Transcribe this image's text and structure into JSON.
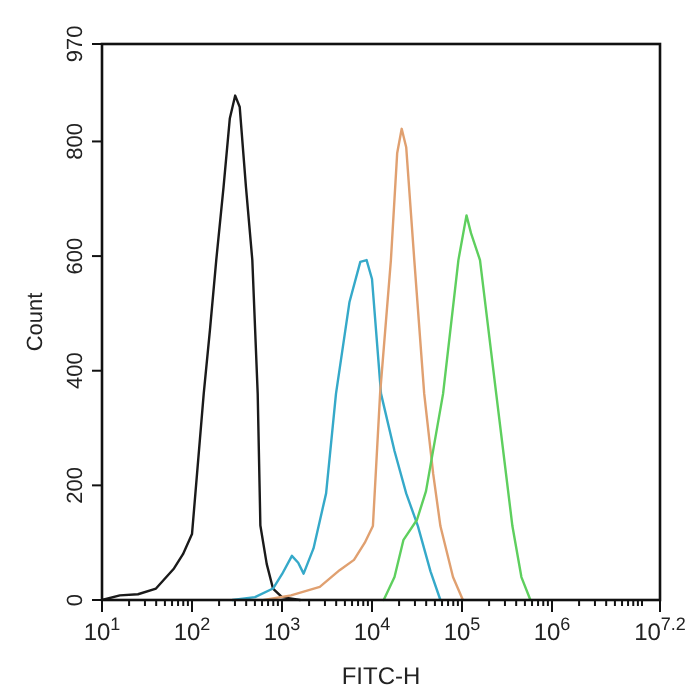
{
  "chart_data": {
    "type": "line",
    "xlabel": "FITC-H",
    "ylabel": "Count",
    "log": "x",
    "grid": false,
    "marker": "none",
    "line_style": "solid",
    "xlim": [
      10,
      15848932
    ],
    "ylim": [
      0,
      970
    ],
    "xticks": [
      {
        "value": 10,
        "label": "10$^{1}$"
      },
      {
        "value": 20,
        "label": null
      },
      {
        "value": 30,
        "label": null
      },
      {
        "value": 40,
        "label": null
      },
      {
        "value": 50,
        "label": null
      },
      {
        "value": 60,
        "label": null
      },
      {
        "value": 70,
        "label": null
      },
      {
        "value": 80,
        "label": null
      },
      {
        "value": 90,
        "label": null
      },
      {
        "value": 100,
        "label": "10$^{2}$"
      },
      {
        "value": 200,
        "label": null
      },
      {
        "value": 300,
        "label": null
      },
      {
        "value": 400,
        "label": null
      },
      {
        "value": 500,
        "label": null
      },
      {
        "value": 600,
        "label": null
      },
      {
        "value": 700,
        "label": null
      },
      {
        "value": 800,
        "label": null
      },
      {
        "value": 900,
        "label": null
      },
      {
        "value": 1000,
        "label": "10$^{3}$"
      },
      {
        "value": 2000,
        "label": null
      },
      {
        "value": 3000,
        "label": null
      },
      {
        "value": 4000,
        "label": null
      },
      {
        "value": 5000,
        "label": null
      },
      {
        "value": 6000,
        "label": null
      },
      {
        "value": 7000,
        "label": null
      },
      {
        "value": 8000,
        "label": null
      },
      {
        "value": 9000,
        "label": null
      },
      {
        "value": 10000,
        "label": "10$^{4}$"
      },
      {
        "value": 20000,
        "label": null
      },
      {
        "value": 30000,
        "label": null
      },
      {
        "value": 40000,
        "label": null
      },
      {
        "value": 50000,
        "label": null
      },
      {
        "value": 60000,
        "label": null
      },
      {
        "value": 70000,
        "label": null
      },
      {
        "value": 80000,
        "label": null
      },
      {
        "value": 90000,
        "label": null
      },
      {
        "value": 100000,
        "label": "10$^{5}$"
      },
      {
        "value": 200000,
        "label": null
      },
      {
        "value": 300000,
        "label": null
      },
      {
        "value": 400000,
        "label": null
      },
      {
        "value": 500000,
        "label": null
      },
      {
        "value": 600000,
        "label": null
      },
      {
        "value": 700000,
        "label": null
      },
      {
        "value": 800000,
        "label": null
      },
      {
        "value": 900000,
        "label": null
      },
      {
        "value": 1000000,
        "label": "10$^{6}$"
      },
      {
        "value": 2000000,
        "label": null
      },
      {
        "value": 3000000,
        "label": null
      },
      {
        "value": 4000000,
        "label": null
      },
      {
        "value": 5000000,
        "label": null
      },
      {
        "value": 6000000,
        "label": null
      },
      {
        "value": 7000000,
        "label": null
      },
      {
        "value": 8000000,
        "label": null
      },
      {
        "value": 9000000,
        "label": null
      },
      {
        "value": 10000000,
        "label": null
      },
      {
        "value": 15848932,
        "label": "10$^{7.2}$"
      }
    ],
    "yticks": [
      0,
      200,
      400,
      600,
      800,
      970
    ],
    "series": [
      {
        "color": "#1a1a1a",
        "x": [
          10,
          15.8,
          25.1,
          39.8,
          63.1,
          79.4,
          100,
          135,
          158,
          186,
          224,
          263,
          302,
          339,
          398,
          468,
          537,
          575,
          676,
          794,
          1000,
          1585
        ],
        "values": [
          0,
          8,
          10,
          20,
          55,
          80,
          115,
          360,
          470,
          593,
          720,
          840,
          880,
          860,
          720,
          593,
          360,
          130,
          63,
          20,
          5,
          0
        ]
      },
      {
        "color": "#35a9c9",
        "x": [
          282,
          501,
          794,
          1000,
          1288,
          1514,
          1738,
          2239,
          3090,
          3981,
          5623,
          7413,
          8710,
          10000,
          12589,
          17783,
          23988,
          32359,
          44668,
          57544
        ],
        "values": [
          0,
          5,
          20,
          45,
          77,
          65,
          46,
          90,
          186,
          360,
          520,
          590,
          593,
          560,
          360,
          260,
          186,
          129,
          50,
          0
        ]
      },
      {
        "color": "#e0a070",
        "x": [
          631,
          1259,
          2630,
          4365,
          6310,
          8318,
          10233,
          12303,
          16218,
          19055,
          21380,
          23988,
          29512,
          38019,
          47863,
          57544,
          79433,
          102329
        ],
        "values": [
          0,
          8,
          23,
          52,
          70,
          100,
          129,
          360,
          593,
          780,
          822,
          790,
          593,
          360,
          220,
          129,
          40,
          0
        ]
      },
      {
        "color": "#5ecf5e",
        "x": [
          13490,
          17783,
          22387,
          31623,
          39811,
          61660,
          91201,
          112202,
          125893,
          158489,
          239883,
          363078,
          457088,
          575440
        ],
        "values": [
          0,
          40,
          105,
          140,
          190,
          360,
          593,
          671,
          640,
          593,
          360,
          129,
          40,
          0
        ]
      }
    ]
  }
}
